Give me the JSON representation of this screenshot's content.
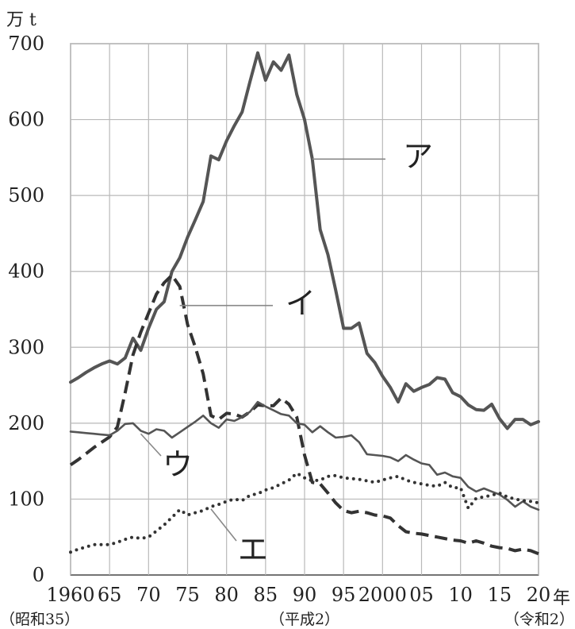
{
  "chart_data": {
    "type": "line",
    "y_unit": "万 t",
    "x_unit": "年",
    "ylim": [
      0,
      700
    ],
    "xlim": [
      1960,
      2020
    ],
    "grid": true,
    "y_ticks": [
      0,
      100,
      200,
      300,
      400,
      500,
      600,
      700
    ],
    "x_ticks": [
      {
        "year": 1960,
        "label": "1960"
      },
      {
        "year": 1965,
        "label": "65"
      },
      {
        "year": 1970,
        "label": "70"
      },
      {
        "year": 1975,
        "label": "75"
      },
      {
        "year": 1980,
        "label": "80"
      },
      {
        "year": 1985,
        "label": "85"
      },
      {
        "year": 1990,
        "label": "90"
      },
      {
        "year": 1995,
        "label": "95"
      },
      {
        "year": 2000,
        "label": "2000"
      },
      {
        "year": 2005,
        "label": "05"
      },
      {
        "year": 2010,
        "label": "10"
      },
      {
        "year": 2015,
        "label": "15"
      },
      {
        "year": 2020,
        "label": "20"
      }
    ],
    "era_labels": [
      {
        "year": 1960,
        "label": "（昭和35）"
      },
      {
        "year": 1990,
        "label": "（平成2）"
      },
      {
        "year": 2020,
        "label": "（令和2）"
      }
    ],
    "series": [
      {
        "name": "ア",
        "style": "solid-thick",
        "color": "#555555",
        "label_anchor": [
          1991,
          548
        ],
        "x": [
          1960,
          1961,
          1962,
          1963,
          1964,
          1965,
          1966,
          1967,
          1968,
          1969,
          1970,
          1971,
          1972,
          1973,
          1974,
          1975,
          1976,
          1977,
          1978,
          1979,
          1980,
          1981,
          1982,
          1983,
          1984,
          1985,
          1986,
          1987,
          1988,
          1989,
          1990,
          1991,
          1992,
          1993,
          1994,
          1995,
          1996,
          1997,
          1998,
          1999,
          2000,
          2001,
          2002,
          2003,
          2004,
          2005,
          2006,
          2007,
          2008,
          2009,
          2010,
          2011,
          2012,
          2013,
          2014,
          2015,
          2016,
          2017,
          2018,
          2019,
          2020
        ],
        "values": [
          254,
          260,
          267,
          273,
          278,
          282,
          278,
          286,
          312,
          296,
          325,
          350,
          360,
          400,
          418,
          445,
          468,
          492,
          552,
          547,
          572,
          592,
          610,
          650,
          688,
          652,
          676,
          665,
          685,
          633,
          600,
          548,
          455,
          422,
          375,
          325,
          325,
          332,
          292,
          280,
          262,
          247,
          228,
          252,
          242,
          247,
          251,
          260,
          258,
          240,
          235,
          224,
          218,
          217,
          225,
          206,
          193,
          205,
          205,
          198,
          202
        ]
      },
      {
        "name": "イ",
        "style": "dashed",
        "color": "#333333",
        "label_anchor": [
          1974,
          355
        ],
        "x": [
          1960,
          1961,
          1962,
          1963,
          1964,
          1965,
          1966,
          1967,
          1968,
          1969,
          1970,
          1971,
          1972,
          1973,
          1974,
          1975,
          1976,
          1977,
          1978,
          1979,
          1980,
          1981,
          1982,
          1983,
          1984,
          1985,
          1986,
          1987,
          1988,
          1989,
          1990,
          1991,
          1992,
          1993,
          1994,
          1995,
          1996,
          1997,
          1998,
          1999,
          2000,
          2001,
          2002,
          2003,
          2004,
          2005,
          2006,
          2007,
          2008,
          2009,
          2010,
          2011,
          2012,
          2013,
          2014,
          2015,
          2016,
          2017,
          2018,
          2019,
          2020
        ],
        "values": [
          145,
          152,
          160,
          168,
          175,
          182,
          195,
          240,
          290,
          320,
          345,
          370,
          385,
          395,
          380,
          330,
          300,
          265,
          210,
          205,
          213,
          212,
          208,
          215,
          224,
          223,
          223,
          233,
          225,
          208,
          158,
          122,
          120,
          108,
          95,
          85,
          82,
          84,
          82,
          79,
          78,
          75,
          65,
          57,
          55,
          54,
          52,
          50,
          48,
          46,
          45,
          42,
          45,
          42,
          38,
          36,
          35,
          32,
          34,
          32,
          28
        ]
      },
      {
        "name": "ウ",
        "style": "solid-thin",
        "color": "#555555",
        "label_anchor": [
          1969,
          186
        ],
        "x": [
          1960,
          1961,
          1962,
          1963,
          1964,
          1965,
          1966,
          1967,
          1968,
          1969,
          1970,
          1971,
          1972,
          1973,
          1974,
          1975,
          1976,
          1977,
          1978,
          1979,
          1980,
          1981,
          1982,
          1983,
          1984,
          1985,
          1986,
          1987,
          1988,
          1989,
          1990,
          1991,
          1992,
          1993,
          1994,
          1995,
          1996,
          1997,
          1998,
          1999,
          2000,
          2001,
          2002,
          2003,
          2004,
          2005,
          2006,
          2007,
          2008,
          2009,
          2010,
          2011,
          2012,
          2013,
          2014,
          2015,
          2016,
          2017,
          2018,
          2019,
          2020
        ],
        "values": [
          189,
          188,
          187,
          186,
          185,
          184,
          190,
          199,
          200,
          190,
          186,
          192,
          190,
          181,
          188,
          195,
          202,
          210,
          200,
          194,
          205,
          203,
          208,
          215,
          228,
          222,
          217,
          212,
          210,
          200,
          198,
          188,
          196,
          188,
          181,
          182,
          184,
          175,
          159,
          158,
          157,
          155,
          150,
          158,
          152,
          147,
          145,
          132,
          135,
          130,
          128,
          116,
          110,
          114,
          110,
          106,
          99,
          90,
          97,
          90,
          86
        ]
      },
      {
        "name": "エ",
        "style": "dotted",
        "color": "#333333",
        "label_anchor": [
          1978,
          87
        ],
        "x": [
          1960,
          1961,
          1962,
          1963,
          1964,
          1965,
          1966,
          1967,
          1968,
          1969,
          1970,
          1971,
          1972,
          1973,
          1974,
          1975,
          1976,
          1977,
          1978,
          1979,
          1980,
          1981,
          1982,
          1983,
          1984,
          1985,
          1986,
          1987,
          1988,
          1989,
          1990,
          1991,
          1992,
          1993,
          1994,
          1995,
          1996,
          1997,
          1998,
          1999,
          2000,
          2001,
          2002,
          2003,
          2004,
          2005,
          2006,
          2007,
          2008,
          2009,
          2010,
          2011,
          2012,
          2013,
          2014,
          2015,
          2016,
          2017,
          2018,
          2019,
          2020
        ],
        "values": [
          30,
          34,
          37,
          40,
          40,
          40,
          43,
          47,
          50,
          48,
          50,
          58,
          66,
          76,
          86,
          79,
          82,
          85,
          90,
          93,
          97,
          100,
          98,
          105,
          107,
          112,
          115,
          120,
          125,
          134,
          128,
          124,
          125,
          130,
          131,
          128,
          127,
          126,
          124,
          122,
          125,
          128,
          130,
          125,
          122,
          120,
          118,
          117,
          122,
          115,
          115,
          88,
          101,
          103,
          105,
          108,
          103,
          100,
          98,
          97,
          95
        ]
      }
    ]
  }
}
